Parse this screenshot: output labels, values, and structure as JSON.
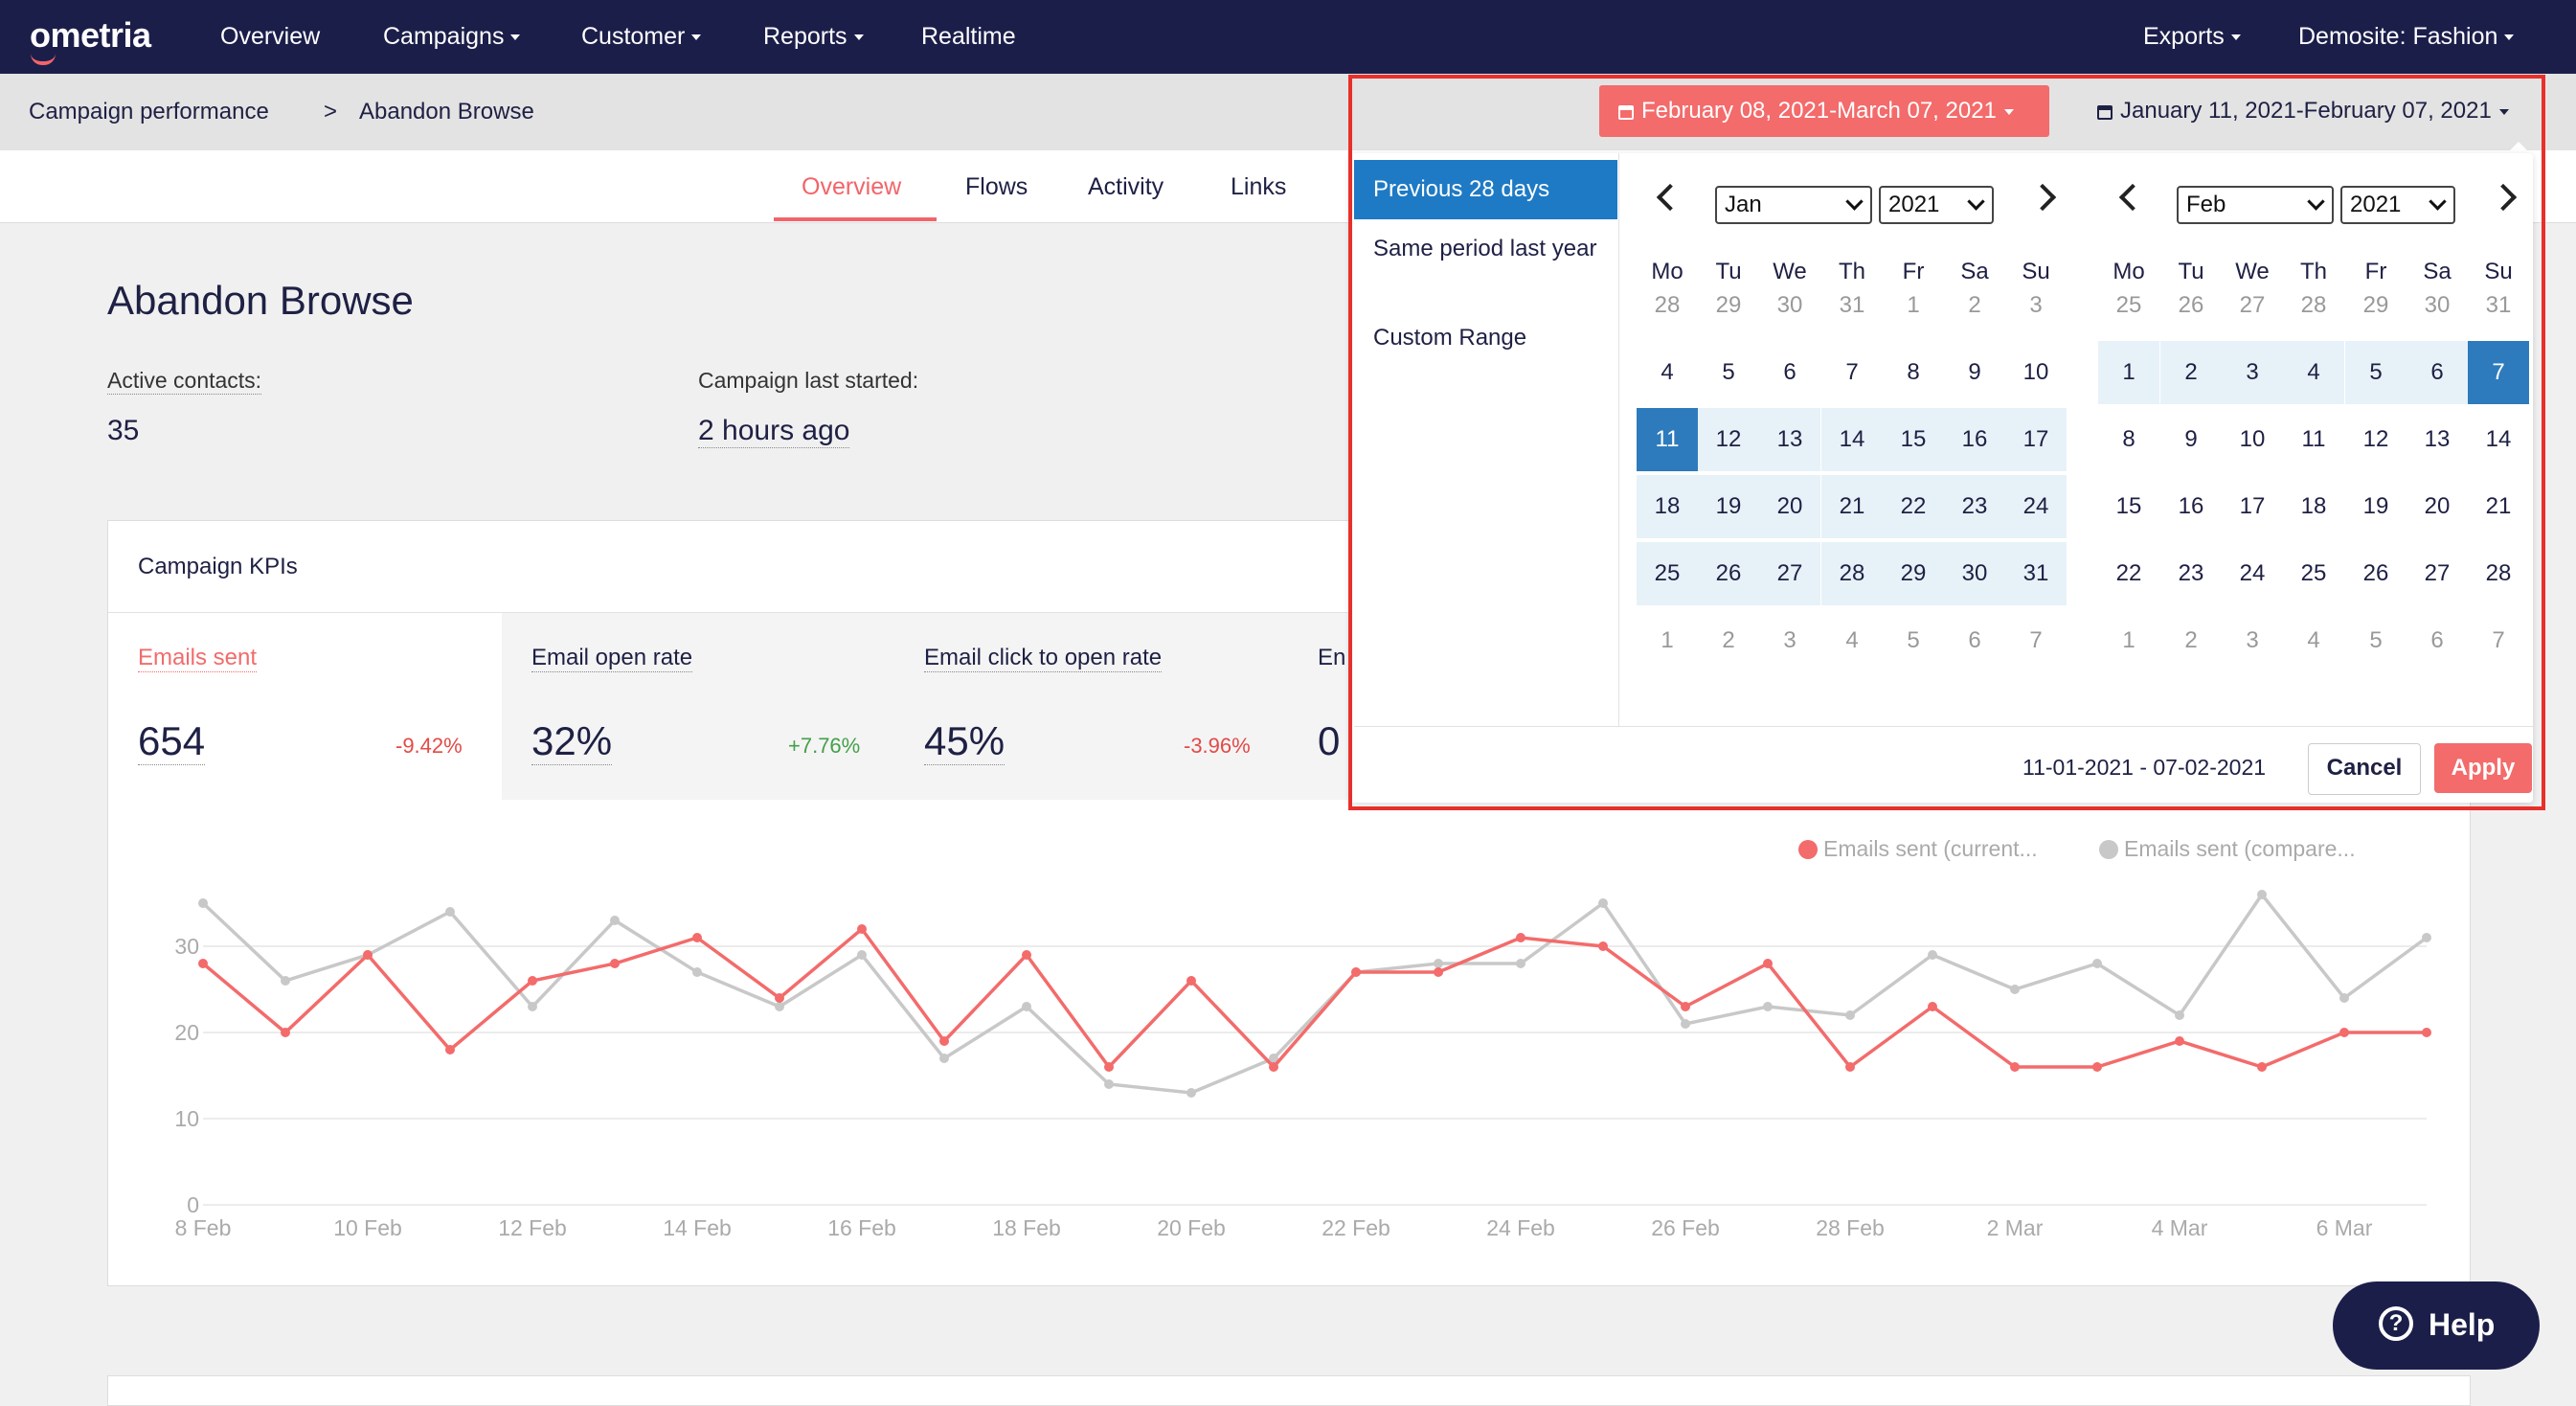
{
  "nav": {
    "logo": "ometria",
    "items": [
      {
        "label": "Overview",
        "has_dropdown": false
      },
      {
        "label": "Campaigns",
        "has_dropdown": true
      },
      {
        "label": "Customer",
        "has_dropdown": true
      },
      {
        "label": "Reports",
        "has_dropdown": true
      },
      {
        "label": "Realtime",
        "has_dropdown": false
      }
    ],
    "exports": "Exports",
    "site": "Demosite: Fashion"
  },
  "breadcrumb": {
    "parent": "Campaign performance",
    "separator": ">",
    "current": "Abandon Browse"
  },
  "tabs": [
    {
      "label": "Overview",
      "active": true
    },
    {
      "label": "Flows",
      "active": false
    },
    {
      "label": "Activity",
      "active": false
    },
    {
      "label": "Links",
      "active": false
    }
  ],
  "date_range": {
    "current": "February 08, 2021-March 07, 2021",
    "compare": "January 11, 2021-February 07, 2021"
  },
  "page": {
    "title": "Abandon Browse",
    "active_contacts_label": "Active contacts:",
    "active_contacts_value": "35",
    "last_started_label": "Campaign last started:",
    "last_started_value": "2 hours ago"
  },
  "kpis": {
    "title": "Campaign KPIs",
    "items": [
      {
        "label": "Emails sent",
        "value": "654",
        "change": "-9.42%",
        "direction": "down",
        "active": true
      },
      {
        "label": "Email open rate",
        "value": "32%",
        "change": "+7.76%",
        "direction": "up",
        "active": false
      },
      {
        "label": "Email click to open rate",
        "value": "45%",
        "change": "-3.96%",
        "direction": "down",
        "active": false
      },
      {
        "label": "En",
        "value": "0",
        "change": "",
        "direction": "",
        "active": false
      }
    ]
  },
  "legend": {
    "current": "Emails sent (current...",
    "compare": "Emails sent (compare..."
  },
  "colors": {
    "current": "#f36b6b",
    "compare": "#c8c8c8",
    "accent": "#1e7ac4",
    "nav": "#1c1e4a"
  },
  "chart_data": {
    "type": "line",
    "x": [
      "8 Feb",
      "9 Feb",
      "10 Feb",
      "11 Feb",
      "12 Feb",
      "13 Feb",
      "14 Feb",
      "15 Feb",
      "16 Feb",
      "17 Feb",
      "18 Feb",
      "19 Feb",
      "20 Feb",
      "21 Feb",
      "22 Feb",
      "23 Feb",
      "24 Feb",
      "25 Feb",
      "26 Feb",
      "27 Feb",
      "28 Feb",
      "1 Mar",
      "2 Mar",
      "3 Mar",
      "4 Mar",
      "5 Mar",
      "6 Mar",
      "7 Mar"
    ],
    "x_tick_labels": [
      "8 Feb",
      "10 Feb",
      "12 Feb",
      "14 Feb",
      "16 Feb",
      "18 Feb",
      "20 Feb",
      "22 Feb",
      "24 Feb",
      "26 Feb",
      "28 Feb",
      "2 Mar",
      "4 Mar",
      "6 Mar"
    ],
    "y_ticks": [
      0,
      10,
      20,
      30
    ],
    "ylim": [
      0,
      36
    ],
    "series": [
      {
        "name": "Emails sent (current...",
        "values": [
          28,
          20,
          29,
          18,
          26,
          28,
          31,
          24,
          32,
          19,
          29,
          16,
          26,
          16,
          27,
          27,
          31,
          30,
          23,
          28,
          16,
          23,
          16,
          16,
          19,
          16,
          20,
          20
        ]
      },
      {
        "name": "Emails sent (compare...",
        "values": [
          35,
          26,
          29,
          34,
          23,
          33,
          27,
          23,
          29,
          17,
          23,
          14,
          13,
          17,
          27,
          28,
          28,
          35,
          21,
          23,
          22,
          29,
          25,
          28,
          22,
          36,
          24,
          31
        ]
      }
    ],
    "grid": true,
    "legend_position": "top-right"
  },
  "picker": {
    "ranges": [
      "Previous 28 days",
      "Same period last year",
      "Custom Range"
    ],
    "active_range": 0,
    "weekdays": [
      "Mo",
      "Tu",
      "We",
      "Th",
      "Fr",
      "Sa",
      "Su"
    ],
    "left": {
      "month": "Jan",
      "year": "2021",
      "weeks": [
        [
          "28",
          "29",
          "30",
          "31",
          "1",
          "2",
          "3"
        ],
        [
          "4",
          "5",
          "6",
          "7",
          "8",
          "9",
          "10"
        ],
        [
          "11",
          "12",
          "13",
          "14",
          "15",
          "16",
          "17"
        ],
        [
          "18",
          "19",
          "20",
          "21",
          "22",
          "23",
          "24"
        ],
        [
          "25",
          "26",
          "27",
          "28",
          "29",
          "30",
          "31"
        ],
        [
          "1",
          "2",
          "3",
          "4",
          "5",
          "6",
          "7"
        ]
      ]
    },
    "right": {
      "month": "Feb",
      "year": "2021",
      "weeks": [
        [
          "25",
          "26",
          "27",
          "28",
          "29",
          "30",
          "31"
        ],
        [
          "1",
          "2",
          "3",
          "4",
          "5",
          "6",
          "7"
        ],
        [
          "8",
          "9",
          "10",
          "11",
          "12",
          "13",
          "14"
        ],
        [
          "15",
          "16",
          "17",
          "18",
          "19",
          "20",
          "21"
        ],
        [
          "22",
          "23",
          "24",
          "25",
          "26",
          "27",
          "28"
        ],
        [
          "1",
          "2",
          "3",
          "4",
          "5",
          "6",
          "7"
        ]
      ]
    },
    "range_text": "11-01-2021 - 07-02-2021",
    "cancel": "Cancel",
    "apply": "Apply"
  },
  "help": {
    "label": "Help",
    "icon_glyph": "?"
  }
}
